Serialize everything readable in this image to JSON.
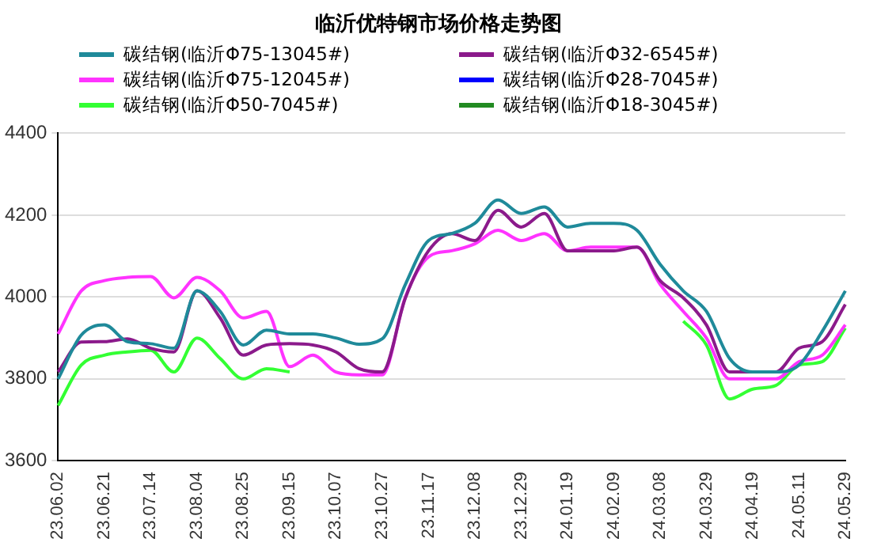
{
  "chart_data": {
    "type": "line",
    "title": "临沂优特钢市场价格走势图",
    "categories": [
      "23.06.02",
      null,
      "23.06.21",
      null,
      "23.07.14",
      null,
      "23.08.04",
      null,
      "23.08.25",
      null,
      "23.09.15",
      null,
      "23.10.07",
      null,
      "23.10.27",
      null,
      "23.11.17",
      null,
      "23.12.08",
      null,
      "23.12.29",
      null,
      "24.01.19",
      null,
      "24.02.09",
      null,
      "24.03.08",
      null,
      "24.03.29",
      null,
      "24.04.19",
      null,
      "24.05.11",
      null,
      "24.05.29"
    ],
    "series": [
      {
        "name": "碳结钢(临沂Φ75-13045#)",
        "color": "#1f8a9a",
        "values": [
          3800,
          3907,
          3932,
          3891,
          3886,
          3875,
          4015,
          3965,
          3883,
          3919,
          3910,
          3910,
          3900,
          3885,
          3898,
          4031,
          4138,
          4155,
          4180,
          4237,
          4204,
          4220,
          4171,
          4180,
          4180,
          4163,
          4080,
          4015,
          3965,
          3850,
          3817,
          3817,
          3834,
          3916,
          4015
        ]
      },
      {
        "name": "碳结钢(临沂Φ32-6545#)",
        "color": "#8b1a8b",
        "values": [
          3817,
          3890,
          3891,
          3898,
          3875,
          3866,
          4015,
          3949,
          3858,
          3883,
          3886,
          3883,
          3866,
          3825,
          3817,
          3998,
          4113,
          4155,
          4138,
          4212,
          4171,
          4204,
          4113,
          4113,
          4113,
          4122,
          4040,
          3998,
          3932,
          3817,
          3817,
          3817,
          3875,
          3891,
          3982
        ]
      },
      {
        "name": "碳结钢(临沂Φ75-12045#)",
        "color": "#ff33ff",
        "values": [
          3910,
          4015,
          4040,
          4048,
          4050,
          3998,
          4048,
          4015,
          3949,
          3965,
          3830,
          3858,
          3817,
          3810,
          3810,
          4000,
          4098,
          4113,
          4130,
          4163,
          4138,
          4155,
          4113,
          4122,
          4122,
          4122,
          4031,
          3965,
          3900,
          3800,
          3800,
          3800,
          3842,
          3858,
          3932
        ]
      },
      {
        "name": "碳结钢(临沂Φ28-7045#)",
        "color": "#0000ff",
        "values": [
          null,
          null,
          null,
          null,
          null,
          null,
          null,
          null,
          null,
          null,
          null,
          null,
          null,
          null,
          null,
          null,
          null,
          null,
          null,
          null,
          null,
          null,
          null,
          null,
          null,
          null,
          null,
          null,
          null,
          null,
          null,
          null,
          null,
          null,
          null
        ]
      },
      {
        "name": "碳结钢(临沂Φ50-7045#)",
        "color": "#33ff33",
        "values": [
          3735,
          3834,
          3858,
          3866,
          3870,
          3817,
          3900,
          3850,
          3800,
          3825,
          3817,
          null,
          null,
          null,
          null,
          null,
          null,
          null,
          null,
          null,
          null,
          null,
          null,
          null,
          null,
          null,
          null,
          3941,
          3883,
          3751,
          3775,
          3784,
          3834,
          3842,
          3924
        ]
      },
      {
        "name": "碳结钢(临沂Φ18-3045#)",
        "color": "#228b22",
        "values": [
          null,
          null,
          null,
          null,
          null,
          null,
          null,
          null,
          null,
          null,
          null,
          null,
          null,
          null,
          null,
          null,
          null,
          null,
          null,
          null,
          null,
          null,
          null,
          null,
          null,
          null,
          null,
          null,
          null,
          null,
          null,
          null,
          null,
          null,
          null
        ]
      }
    ],
    "ylim": [
      3600,
      4400
    ],
    "yticks": [
      3600,
      3800,
      4000,
      4200,
      4400
    ],
    "grid": "y",
    "legend": "top",
    "marker": "none",
    "line_style": "solid"
  }
}
